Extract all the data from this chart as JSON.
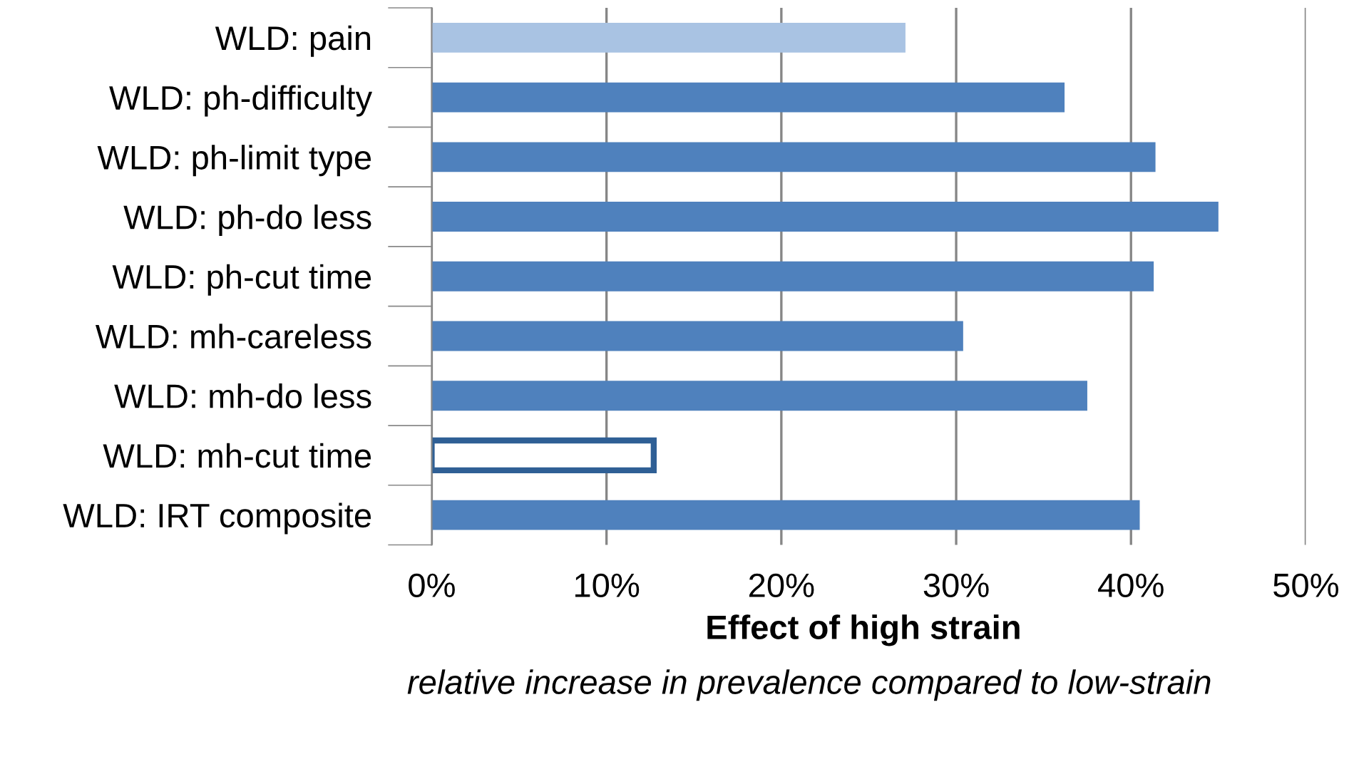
{
  "chart_data": {
    "type": "bar",
    "orientation": "horizontal",
    "categories": [
      "WLD: pain",
      "WLD: ph-difficulty",
      "WLD: ph-limit type",
      "WLD: ph-do less",
      "WLD: ph-cut time",
      "WLD: mh-careless",
      "WLD: mh-do less",
      "WLD: mh-cut time",
      "WLD: IRT composite"
    ],
    "values": [
      27.1,
      36.2,
      41.4,
      45.0,
      41.3,
      30.4,
      37.5,
      12.7,
      40.5
    ],
    "colors": [
      "#a9c3e3",
      "#4f81bd",
      "#4f81bd",
      "#4f81bd",
      "#4f81bd",
      "#4f81bd",
      "#4f81bd",
      "#ffffff",
      "#4f81bd"
    ],
    "xlim": [
      0,
      50
    ],
    "xticks": [
      {
        "value": 0,
        "label": "0%"
      },
      {
        "value": 10,
        "label": "10%"
      },
      {
        "value": 20,
        "label": "20%"
      },
      {
        "value": 30,
        "label": "30%"
      },
      {
        "value": 40,
        "label": "40%"
      },
      {
        "value": 50,
        "label": "50%"
      }
    ],
    "grid": "x",
    "xlabel": "Effect of high strain",
    "annotations": [
      "relative increase in prevalence compared to low-strain"
    ]
  }
}
